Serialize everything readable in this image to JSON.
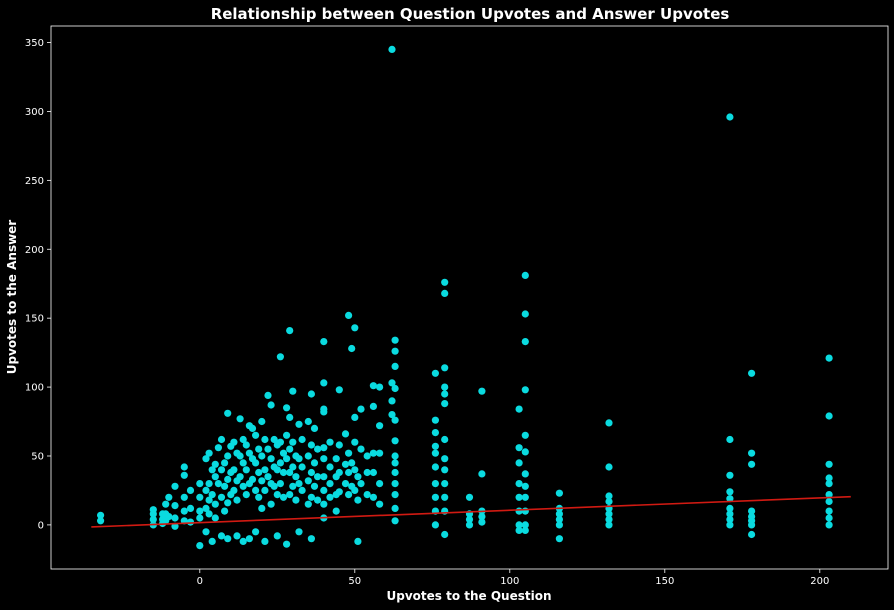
{
  "chart_data": {
    "type": "scatter",
    "title": "Relationship between Question Upvotes and Answer Upvotes",
    "xlabel": "Upvotes to the Question",
    "ylabel": "Upvotes to the Answer",
    "xlim": [
      -48,
      222
    ],
    "ylim": [
      -32,
      362
    ],
    "xticks": [
      0,
      50,
      100,
      150,
      200
    ],
    "yticks": [
      0,
      50,
      100,
      150,
      200,
      250,
      300,
      350
    ],
    "grid": false,
    "colors": {
      "background": "#000000",
      "points": "#0adbe0",
      "trend_line": "#d11a12",
      "text": "#ffffff",
      "axes": "#ffffff"
    },
    "series": [
      {
        "points": [
          [
            -32,
            7
          ],
          [
            -32,
            3
          ],
          [
            -15,
            11
          ],
          [
            -15,
            8
          ],
          [
            -15,
            4
          ],
          [
            -15,
            0
          ],
          [
            -12,
            8
          ],
          [
            -12,
            4
          ],
          [
            -12,
            1
          ],
          [
            -11,
            15
          ],
          [
            -11,
            8
          ],
          [
            -11,
            3
          ],
          [
            -10,
            20
          ],
          [
            -10,
            6
          ],
          [
            -8,
            28
          ],
          [
            -8,
            14
          ],
          [
            -8,
            5
          ],
          [
            -8,
            -1
          ],
          [
            -5,
            36
          ],
          [
            -5,
            42
          ],
          [
            -5,
            20
          ],
          [
            -5,
            10
          ],
          [
            -5,
            3
          ],
          [
            -3,
            25
          ],
          [
            -3,
            12
          ],
          [
            -3,
            2
          ],
          [
            0,
            -15
          ],
          [
            0,
            20
          ],
          [
            0,
            10
          ],
          [
            0,
            5
          ],
          [
            0,
            30
          ],
          [
            2,
            48
          ],
          [
            2,
            25
          ],
          [
            2,
            12
          ],
          [
            2,
            -5
          ],
          [
            3,
            52
          ],
          [
            3,
            30
          ],
          [
            3,
            18
          ],
          [
            3,
            8
          ],
          [
            4,
            -12
          ],
          [
            4,
            40
          ],
          [
            4,
            22
          ],
          [
            5,
            44
          ],
          [
            5,
            35
          ],
          [
            5,
            15
          ],
          [
            5,
            5
          ],
          [
            6,
            56
          ],
          [
            6,
            30
          ],
          [
            7,
            62
          ],
          [
            7,
            40
          ],
          [
            7,
            20
          ],
          [
            7,
            -8
          ],
          [
            8,
            45
          ],
          [
            8,
            28
          ],
          [
            8,
            10
          ],
          [
            9,
            81
          ],
          [
            9,
            50
          ],
          [
            9,
            33
          ],
          [
            9,
            16
          ],
          [
            9,
            -10
          ],
          [
            10,
            57
          ],
          [
            10,
            38
          ],
          [
            10,
            22
          ],
          [
            11,
            60
          ],
          [
            11,
            40
          ],
          [
            11,
            25
          ],
          [
            12,
            52
          ],
          [
            12,
            32
          ],
          [
            12,
            18
          ],
          [
            12,
            -8
          ],
          [
            13,
            77
          ],
          [
            13,
            50
          ],
          [
            13,
            35
          ],
          [
            14,
            62
          ],
          [
            14,
            45
          ],
          [
            14,
            28
          ],
          [
            14,
            -12
          ],
          [
            15,
            58
          ],
          [
            15,
            40
          ],
          [
            15,
            22
          ],
          [
            16,
            72
          ],
          [
            16,
            52
          ],
          [
            16,
            30
          ],
          [
            16,
            -10
          ],
          [
            17,
            70
          ],
          [
            17,
            48
          ],
          [
            17,
            33
          ],
          [
            18,
            65
          ],
          [
            18,
            45
          ],
          [
            18,
            25
          ],
          [
            18,
            -5
          ],
          [
            19,
            55
          ],
          [
            19,
            38
          ],
          [
            19,
            20
          ],
          [
            20,
            75
          ],
          [
            20,
            50
          ],
          [
            20,
            32
          ],
          [
            20,
            12
          ],
          [
            21,
            62
          ],
          [
            21,
            40
          ],
          [
            21,
            25
          ],
          [
            21,
            -12
          ],
          [
            22,
            94
          ],
          [
            22,
            55
          ],
          [
            22,
            35
          ],
          [
            23,
            87
          ],
          [
            23,
            48
          ],
          [
            23,
            30
          ],
          [
            23,
            15
          ],
          [
            24,
            62
          ],
          [
            24,
            42
          ],
          [
            24,
            28
          ],
          [
            25,
            58
          ],
          [
            25,
            40
          ],
          [
            25,
            22
          ],
          [
            25,
            -8
          ],
          [
            26,
            122
          ],
          [
            26,
            60
          ],
          [
            26,
            45
          ],
          [
            26,
            30
          ],
          [
            27,
            52
          ],
          [
            27,
            38
          ],
          [
            27,
            20
          ],
          [
            28,
            85
          ],
          [
            28,
            65
          ],
          [
            28,
            48
          ],
          [
            28,
            -14
          ],
          [
            29,
            141
          ],
          [
            29,
            78
          ],
          [
            29,
            55
          ],
          [
            29,
            38
          ],
          [
            29,
            22
          ],
          [
            30,
            97
          ],
          [
            30,
            60
          ],
          [
            30,
            42
          ],
          [
            30,
            28
          ],
          [
            31,
            50
          ],
          [
            31,
            35
          ],
          [
            31,
            18
          ],
          [
            32,
            73
          ],
          [
            32,
            48
          ],
          [
            32,
            30
          ],
          [
            32,
            -5
          ],
          [
            33,
            62
          ],
          [
            33,
            42
          ],
          [
            33,
            25
          ],
          [
            35,
            75
          ],
          [
            35,
            50
          ],
          [
            35,
            32
          ],
          [
            35,
            15
          ],
          [
            36,
            95
          ],
          [
            36,
            58
          ],
          [
            36,
            38
          ],
          [
            36,
            20
          ],
          [
            36,
            -10
          ],
          [
            37,
            70
          ],
          [
            37,
            45
          ],
          [
            37,
            28
          ],
          [
            38,
            55
          ],
          [
            38,
            35
          ],
          [
            38,
            18
          ],
          [
            40,
            133
          ],
          [
            40,
            103
          ],
          [
            40,
            84
          ],
          [
            40,
            82
          ],
          [
            40,
            56
          ],
          [
            40,
            48
          ],
          [
            40,
            35
          ],
          [
            40,
            25
          ],
          [
            40,
            15
          ],
          [
            40,
            5
          ],
          [
            42,
            60
          ],
          [
            42,
            42
          ],
          [
            42,
            30
          ],
          [
            42,
            20
          ],
          [
            44,
            48
          ],
          [
            44,
            35
          ],
          [
            44,
            22
          ],
          [
            44,
            10
          ],
          [
            45,
            98
          ],
          [
            45,
            58
          ],
          [
            45,
            38
          ],
          [
            45,
            24
          ],
          [
            47,
            66
          ],
          [
            47,
            44
          ],
          [
            47,
            30
          ],
          [
            48,
            152
          ],
          [
            48,
            52
          ],
          [
            48,
            38
          ],
          [
            48,
            22
          ],
          [
            49,
            128
          ],
          [
            49,
            45
          ],
          [
            49,
            28
          ],
          [
            50,
            143
          ],
          [
            50,
            78
          ],
          [
            50,
            60
          ],
          [
            50,
            40
          ],
          [
            50,
            25
          ],
          [
            51,
            -12
          ],
          [
            51,
            35
          ],
          [
            51,
            18
          ],
          [
            52,
            84
          ],
          [
            52,
            55
          ],
          [
            52,
            30
          ],
          [
            54,
            50
          ],
          [
            54,
            38
          ],
          [
            54,
            22
          ],
          [
            56,
            101
          ],
          [
            56,
            86
          ],
          [
            56,
            52
          ],
          [
            56,
            38
          ],
          [
            56,
            20
          ],
          [
            58,
            100
          ],
          [
            58,
            72
          ],
          [
            58,
            52
          ],
          [
            58,
            30
          ],
          [
            58,
            15
          ],
          [
            62,
            345
          ],
          [
            62,
            103
          ],
          [
            62,
            90
          ],
          [
            62,
            80
          ],
          [
            63,
            134
          ],
          [
            63,
            126
          ],
          [
            63,
            115
          ],
          [
            63,
            99
          ],
          [
            63,
            76
          ],
          [
            63,
            61
          ],
          [
            63,
            50
          ],
          [
            63,
            45
          ],
          [
            63,
            38
          ],
          [
            63,
            30
          ],
          [
            63,
            22
          ],
          [
            63,
            12
          ],
          [
            63,
            3
          ],
          [
            76,
            110
          ],
          [
            76,
            76
          ],
          [
            76,
            67
          ],
          [
            76,
            57
          ],
          [
            76,
            52
          ],
          [
            76,
            42
          ],
          [
            76,
            30
          ],
          [
            76,
            20
          ],
          [
            76,
            10
          ],
          [
            76,
            0
          ],
          [
            79,
            176
          ],
          [
            79,
            168
          ],
          [
            79,
            114
          ],
          [
            79,
            100
          ],
          [
            79,
            95
          ],
          [
            79,
            88
          ],
          [
            79,
            62
          ],
          [
            79,
            48
          ],
          [
            79,
            40
          ],
          [
            79,
            30
          ],
          [
            79,
            20
          ],
          [
            79,
            10
          ],
          [
            79,
            -7
          ],
          [
            87,
            20
          ],
          [
            87,
            8
          ],
          [
            87,
            4
          ],
          [
            87,
            0
          ],
          [
            91,
            97
          ],
          [
            91,
            37
          ],
          [
            91,
            10
          ],
          [
            91,
            6
          ],
          [
            91,
            2
          ],
          [
            103,
            84
          ],
          [
            103,
            56
          ],
          [
            103,
            45
          ],
          [
            103,
            30
          ],
          [
            103,
            20
          ],
          [
            103,
            10
          ],
          [
            103,
            0
          ],
          [
            103,
            -4
          ],
          [
            105,
            181
          ],
          [
            105,
            153
          ],
          [
            105,
            133
          ],
          [
            105,
            98
          ],
          [
            105,
            65
          ],
          [
            105,
            53
          ],
          [
            105,
            37
          ],
          [
            105,
            28
          ],
          [
            105,
            20
          ],
          [
            105,
            10
          ],
          [
            105,
            0
          ],
          [
            105,
            -4
          ],
          [
            116,
            23
          ],
          [
            116,
            12
          ],
          [
            116,
            8
          ],
          [
            116,
            4
          ],
          [
            116,
            0
          ],
          [
            116,
            -10
          ],
          [
            132,
            74
          ],
          [
            132,
            42
          ],
          [
            132,
            21
          ],
          [
            132,
            17
          ],
          [
            132,
            12
          ],
          [
            132,
            8
          ],
          [
            132,
            4
          ],
          [
            132,
            0
          ],
          [
            171,
            296
          ],
          [
            171,
            62
          ],
          [
            171,
            36
          ],
          [
            171,
            24
          ],
          [
            171,
            19
          ],
          [
            171,
            12
          ],
          [
            171,
            8
          ],
          [
            171,
            4
          ],
          [
            171,
            0
          ],
          [
            178,
            110
          ],
          [
            178,
            52
          ],
          [
            178,
            44
          ],
          [
            178,
            10
          ],
          [
            178,
            6
          ],
          [
            178,
            3
          ],
          [
            178,
            0
          ],
          [
            178,
            -7
          ],
          [
            203,
            121
          ],
          [
            203,
            79
          ],
          [
            203,
            44
          ],
          [
            203,
            34
          ],
          [
            203,
            30
          ],
          [
            203,
            22
          ],
          [
            203,
            17
          ],
          [
            203,
            10
          ],
          [
            203,
            5
          ],
          [
            203,
            0
          ]
        ]
      }
    ],
    "trend_line": {
      "x": [
        -35,
        210
      ],
      "y": [
        -1.5,
        20.5
      ]
    }
  }
}
